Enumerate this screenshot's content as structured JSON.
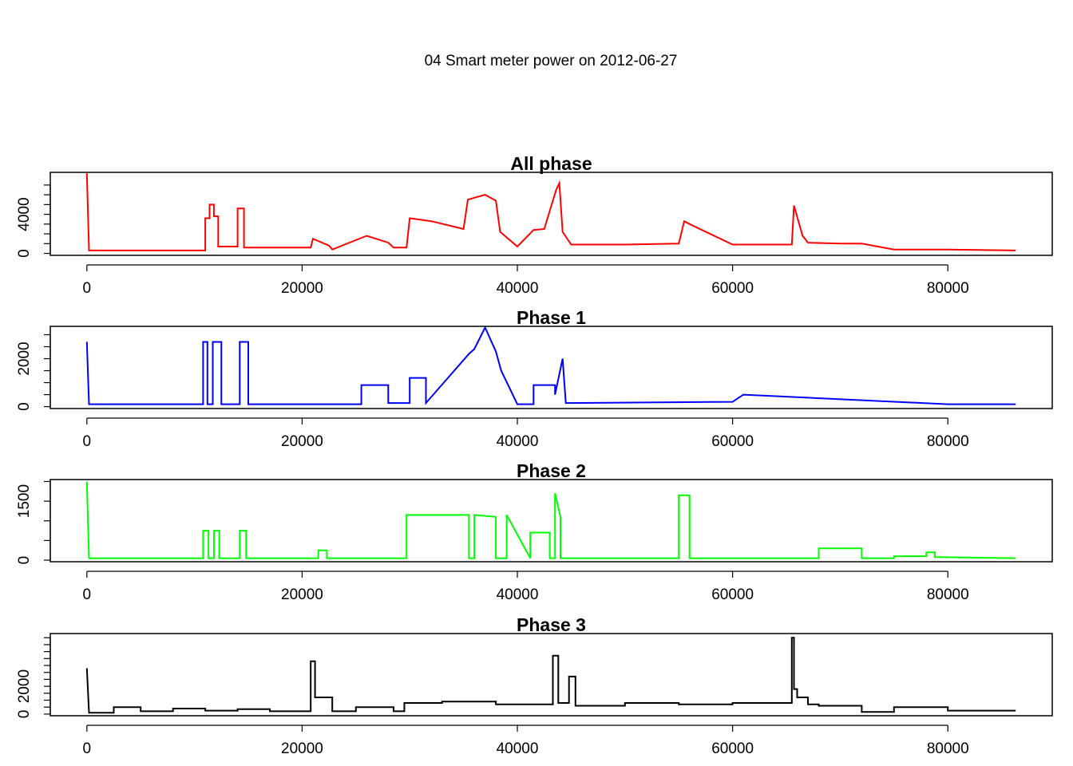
{
  "figure": {
    "main_title": "04 Smart meter power on 2012-06-27",
    "background": "#ffffff"
  },
  "chart_data": [
    {
      "type": "line",
      "title": "All phase",
      "xlabel": "",
      "ylabel": "",
      "color": "#ff0000",
      "xlim": [
        -3400,
        89700
      ],
      "ylim": [
        -200,
        8300
      ],
      "x_ticks": [
        0,
        20000,
        40000,
        60000,
        80000
      ],
      "x_tick_labels": [
        "0",
        "20000",
        "40000",
        "60000",
        "80000"
      ],
      "y_ticks": [
        0,
        1000,
        2000,
        3000,
        4000,
        5000,
        6000,
        7000
      ],
      "y_tick_labels": [
        "0",
        "",
        "",
        "",
        "4000",
        "",
        "",
        ""
      ],
      "grid": false,
      "x": [
        0,
        0,
        200,
        11000,
        11000,
        11400,
        11400,
        11800,
        11800,
        12200,
        12200,
        14000,
        14000,
        14600,
        14600,
        20800,
        21000,
        22500,
        22800,
        26000,
        28000,
        28500,
        29700,
        30000,
        32000,
        35000,
        35400,
        36000,
        37000,
        38000,
        38400,
        40000,
        41500,
        42500,
        43600,
        43900,
        44200,
        45000,
        50000,
        55000,
        55500,
        56000,
        60000,
        65500,
        65700,
        66500,
        67000,
        70000,
        72000,
        75000,
        80000,
        86300
      ],
      "y": [
        8200,
        8200,
        300,
        300,
        3600,
        3600,
        5000,
        5000,
        3800,
        3800,
        700,
        700,
        4600,
        4600,
        600,
        600,
        1500,
        800,
        400,
        1800,
        1100,
        600,
        600,
        3600,
        3300,
        2500,
        5500,
        5700,
        6000,
        5400,
        2200,
        700,
        2400,
        2500,
        6500,
        7200,
        2200,
        900,
        900,
        1000,
        3300,
        3000,
        900,
        900,
        4900,
        1800,
        1100,
        1000,
        1000,
        400,
        400,
        300
      ]
    },
    {
      "type": "line",
      "title": "Phase 1",
      "xlabel": "",
      "ylabel": "",
      "color": "#0000ff",
      "xlim": [
        -3400,
        89700
      ],
      "ylim": [
        -80,
        3350
      ],
      "x_ticks": [
        0,
        20000,
        40000,
        60000,
        80000
      ],
      "x_tick_labels": [
        "0",
        "20000",
        "40000",
        "60000",
        "80000"
      ],
      "y_ticks": [
        0,
        500,
        1000,
        1500,
        2000,
        2500,
        3000
      ],
      "y_tick_labels": [
        "0",
        "",
        "",
        "",
        "2000",
        "",
        ""
      ],
      "grid": false,
      "x": [
        0,
        0,
        200,
        10800,
        10800,
        11200,
        11200,
        11700,
        11700,
        12500,
        12500,
        14200,
        14200,
        15000,
        15000,
        25500,
        25500,
        28000,
        28000,
        30000,
        30000,
        31500,
        31500,
        35500,
        36000,
        37000,
        38000,
        38500,
        40000,
        41500,
        41500,
        43500,
        43500,
        44200,
        44500,
        60000,
        61000,
        80000,
        86300
      ],
      "y": [
        2700,
        2700,
        100,
        100,
        2700,
        2700,
        100,
        100,
        2700,
        2700,
        100,
        100,
        2700,
        2700,
        100,
        100,
        900,
        900,
        150,
        150,
        1200,
        1200,
        150,
        2200,
        2400,
        3300,
        2300,
        1500,
        100,
        100,
        900,
        900,
        500,
        2000,
        150,
        200,
        500,
        100,
        100
      ]
    },
    {
      "type": "line",
      "title": "Phase 2",
      "xlabel": "",
      "ylabel": "",
      "color": "#00ff00",
      "xlim": [
        -3400,
        89700
      ],
      "ylim": [
        -40,
        2050
      ],
      "x_ticks": [
        0,
        20000,
        40000,
        60000,
        80000
      ],
      "x_tick_labels": [
        "0",
        "20000",
        "40000",
        "60000",
        "80000"
      ],
      "y_ticks": [
        0,
        500,
        1000,
        1500,
        2000
      ],
      "y_tick_labels": [
        "0",
        "",
        "",
        "1500",
        ""
      ],
      "grid": false,
      "x": [
        0,
        0,
        200,
        10800,
        10800,
        11300,
        11300,
        11800,
        11800,
        12300,
        12300,
        14200,
        14200,
        14800,
        14800,
        21500,
        21500,
        22300,
        22300,
        29700,
        29700,
        34500,
        34500,
        35500,
        35500,
        36000,
        36000,
        38000,
        38000,
        39000,
        39000,
        41200,
        41200,
        43000,
        43000,
        43500,
        43500,
        44000,
        44000,
        55000,
        55000,
        56000,
        56000,
        68000,
        68000,
        72000,
        72000,
        75000,
        75000,
        78000,
        78000,
        78800,
        78800,
        86300
      ],
      "y": [
        2000,
        2000,
        50,
        50,
        750,
        750,
        50,
        50,
        750,
        750,
        50,
        50,
        750,
        750,
        50,
        50,
        250,
        250,
        50,
        50,
        1150,
        1150,
        1150,
        1150,
        50,
        50,
        1150,
        1100,
        50,
        50,
        1150,
        50,
        700,
        700,
        50,
        50,
        1700,
        1100,
        50,
        50,
        1650,
        1650,
        50,
        50,
        300,
        300,
        50,
        50,
        100,
        100,
        200,
        200,
        80,
        50
      ]
    },
    {
      "type": "line",
      "title": "Phase 3",
      "xlabel": "",
      "ylabel": "",
      "color": "#000000",
      "xlim": [
        -3400,
        89700
      ],
      "ylim": [
        -120,
        5800
      ],
      "x_ticks": [
        0,
        20000,
        40000,
        60000,
        80000
      ],
      "x_tick_labels": [
        "0",
        "20000",
        "40000",
        "60000",
        "80000"
      ],
      "y_ticks": [
        0,
        500,
        1000,
        1500,
        2000,
        2500,
        3000,
        3500,
        4000,
        4500,
        5000,
        5500
      ],
      "y_tick_labels": [
        "0",
        "",
        "",
        "",
        "2000",
        "",
        "",
        "",
        "",
        "",
        "",
        ""
      ],
      "grid": false,
      "x": [
        0,
        0,
        200,
        2500,
        2500,
        5000,
        5000,
        8000,
        8000,
        11000,
        11000,
        14000,
        14000,
        17000,
        17000,
        20800,
        20800,
        21200,
        21200,
        22800,
        22800,
        25000,
        25000,
        28500,
        28500,
        29500,
        29500,
        33000,
        33000,
        38000,
        38000,
        43300,
        43300,
        43800,
        43800,
        44800,
        44800,
        45400,
        45400,
        50000,
        50000,
        55000,
        55000,
        60000,
        60000,
        65500,
        65500,
        65700,
        65700,
        66000,
        66000,
        67000,
        67000,
        68000,
        68000,
        72000,
        72000,
        75000,
        75000,
        80000,
        80000,
        83000,
        83000,
        86300
      ],
      "y": [
        3300,
        3300,
        100,
        100,
        500,
        500,
        200,
        200,
        400,
        400,
        250,
        250,
        350,
        350,
        200,
        200,
        3800,
        3800,
        1200,
        1200,
        200,
        200,
        500,
        500,
        200,
        200,
        800,
        800,
        900,
        900,
        700,
        700,
        4200,
        4200,
        800,
        800,
        2700,
        2700,
        600,
        600,
        800,
        800,
        700,
        700,
        800,
        800,
        5500,
        5500,
        1800,
        1800,
        1200,
        1200,
        700,
        700,
        600,
        600,
        150,
        150,
        500,
        500,
        250,
        250,
        250,
        250
      ]
    }
  ]
}
